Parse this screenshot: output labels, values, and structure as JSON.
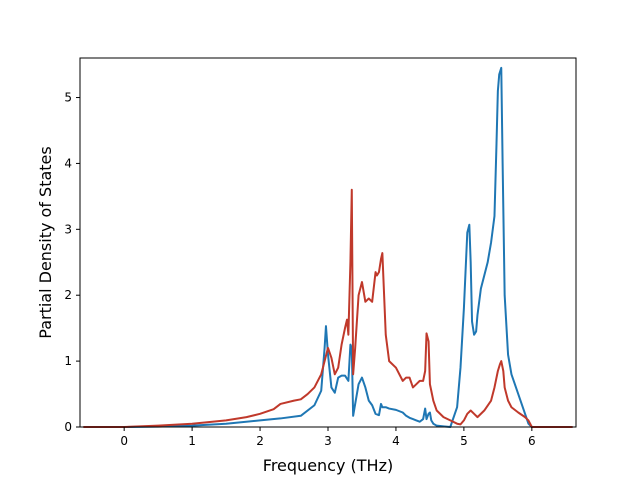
{
  "chart_data": {
    "type": "line",
    "title": "",
    "xlabel": "Frequency (THz)",
    "ylabel": "Partial Density of States",
    "xlim": [
      -0.65,
      6.65
    ],
    "ylim": [
      0,
      5.6
    ],
    "xticks": [
      0,
      1,
      2,
      3,
      4,
      5,
      6
    ],
    "yticks": [
      0,
      1,
      2,
      3,
      4,
      5
    ],
    "grid": false,
    "legend": "none",
    "series": [
      {
        "color": "#1f77b4",
        "x": [
          -0.6,
          0.0,
          0.5,
          1.0,
          1.5,
          2.0,
          2.3,
          2.6,
          2.8,
          2.9,
          2.95,
          2.97,
          3.0,
          3.05,
          3.1,
          3.15,
          3.2,
          3.25,
          3.3,
          3.33,
          3.35,
          3.37,
          3.4,
          3.45,
          3.5,
          3.55,
          3.6,
          3.65,
          3.7,
          3.75,
          3.78,
          3.8,
          3.85,
          3.9,
          4.0,
          4.1,
          4.15,
          4.2,
          4.25,
          4.3,
          4.35,
          4.4,
          4.43,
          4.45,
          4.48,
          4.5,
          4.52,
          4.55,
          4.6,
          4.7,
          4.8,
          4.9,
          4.95,
          5.0,
          5.05,
          5.08,
          5.1,
          5.12,
          5.15,
          5.18,
          5.2,
          5.25,
          5.3,
          5.35,
          5.4,
          5.45,
          5.48,
          5.5,
          5.52,
          5.55,
          5.57,
          5.6,
          5.65,
          5.7,
          5.8,
          5.9,
          5.95,
          6.0,
          6.1,
          6.6
        ],
        "y": [
          0,
          0.0,
          0.005,
          0.02,
          0.05,
          0.1,
          0.13,
          0.17,
          0.33,
          0.55,
          1.2,
          1.53,
          1.1,
          0.6,
          0.52,
          0.75,
          0.78,
          0.78,
          0.7,
          1.25,
          1.2,
          0.17,
          0.35,
          0.65,
          0.75,
          0.6,
          0.4,
          0.33,
          0.2,
          0.18,
          0.35,
          0.3,
          0.3,
          0.28,
          0.26,
          0.22,
          0.17,
          0.14,
          0.12,
          0.1,
          0.08,
          0.12,
          0.28,
          0.12,
          0.2,
          0.22,
          0.1,
          0.05,
          0.02,
          0.01,
          0.0,
          0.3,
          0.9,
          1.8,
          2.95,
          3.07,
          2.5,
          1.6,
          1.4,
          1.45,
          1.7,
          2.1,
          2.3,
          2.5,
          2.8,
          3.2,
          4.3,
          5.1,
          5.35,
          5.45,
          4.0,
          2.0,
          1.1,
          0.8,
          0.5,
          0.2,
          0.05,
          0.0,
          0.0,
          0.0
        ]
      },
      {
        "color": "#c0392b",
        "x": [
          -0.6,
          0.0,
          0.5,
          1.0,
          1.5,
          1.8,
          2.0,
          2.2,
          2.3,
          2.5,
          2.6,
          2.7,
          2.8,
          2.9,
          2.95,
          3.0,
          3.05,
          3.1,
          3.15,
          3.2,
          3.25,
          3.28,
          3.3,
          3.33,
          3.35,
          3.37,
          3.4,
          3.45,
          3.5,
          3.55,
          3.6,
          3.65,
          3.7,
          3.72,
          3.75,
          3.78,
          3.8,
          3.85,
          3.9,
          4.0,
          4.1,
          4.15,
          4.2,
          4.25,
          4.3,
          4.35,
          4.4,
          4.43,
          4.45,
          4.48,
          4.5,
          4.52,
          4.55,
          4.6,
          4.7,
          4.8,
          4.9,
          4.95,
          5.0,
          5.05,
          5.1,
          5.15,
          5.2,
          5.3,
          5.4,
          5.45,
          5.5,
          5.53,
          5.55,
          5.58,
          5.6,
          5.65,
          5.7,
          5.8,
          5.9,
          5.95,
          6.0,
          6.1,
          6.6
        ],
        "y": [
          0,
          0.0,
          0.02,
          0.05,
          0.1,
          0.15,
          0.2,
          0.27,
          0.35,
          0.4,
          0.42,
          0.5,
          0.6,
          0.8,
          1.0,
          1.2,
          1.05,
          0.8,
          0.9,
          1.25,
          1.5,
          1.63,
          1.4,
          2.5,
          3.6,
          0.8,
          1.2,
          2.0,
          2.2,
          1.9,
          1.95,
          1.9,
          2.35,
          2.3,
          2.35,
          2.55,
          2.64,
          1.4,
          1.0,
          0.9,
          0.7,
          0.75,
          0.75,
          0.6,
          0.65,
          0.7,
          0.7,
          0.85,
          1.42,
          1.3,
          0.65,
          0.55,
          0.4,
          0.25,
          0.15,
          0.1,
          0.05,
          0.04,
          0.1,
          0.2,
          0.25,
          0.2,
          0.15,
          0.25,
          0.4,
          0.6,
          0.85,
          0.95,
          1.0,
          0.85,
          0.6,
          0.4,
          0.3,
          0.22,
          0.15,
          0.1,
          0.0,
          0.0,
          0.0
        ]
      }
    ]
  }
}
